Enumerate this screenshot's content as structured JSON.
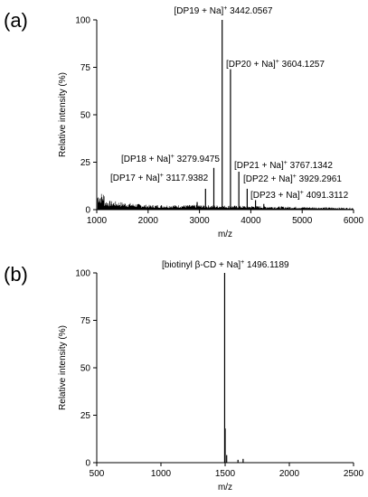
{
  "chart_data": [
    {
      "panel_label": "(a)",
      "type": "bar",
      "xlabel": "m/z",
      "ylabel": "Relative intensity (%)",
      "xlim": [
        1000,
        6000
      ],
      "ylim": [
        0,
        100
      ],
      "xticks": [
        "1000",
        "2000",
        "3000",
        "4000",
        "5000",
        "6000"
      ],
      "yticks": [
        "0",
        "25",
        "50",
        "75",
        "100"
      ],
      "peaks": [
        {
          "x": 2955,
          "y": 4
        },
        {
          "x": 3117.9382,
          "y": 11
        },
        {
          "x": 3279.9475,
          "y": 22
        },
        {
          "x": 3442.0567,
          "y": 100
        },
        {
          "x": 3604.1257,
          "y": 74
        },
        {
          "x": 3767.1342,
          "y": 20
        },
        {
          "x": 3929.2961,
          "y": 11
        },
        {
          "x": 4091.3112,
          "y": 5
        },
        {
          "x": 4253,
          "y": 3
        }
      ],
      "annotations": [
        {
          "peak": "[DP19 + Na]",
          "sup": "+",
          "mz": "3442.0567"
        },
        {
          "peak": "[DP20 + Na]",
          "sup": "+",
          "mz": "3604.1257"
        },
        {
          "peak": "[DP18 + Na]",
          "sup": "+",
          "mz": "3279.9475"
        },
        {
          "peak": "[DP21 + Na]",
          "sup": "+",
          "mz": "3767.1342"
        },
        {
          "peak": "[DP17 + Na]",
          "sup": "+",
          "mz": "3117.9382"
        },
        {
          "peak": "[DP22 + Na]",
          "sup": "+",
          "mz": "3929.2961"
        },
        {
          "peak": "[DP23 + Na]",
          "sup": "+",
          "mz": "4091.3112"
        }
      ],
      "baseline": "noisy, 1000–2000 up to ~8%, decaying to ~1% by 6000"
    },
    {
      "panel_label": "(b)",
      "type": "bar",
      "xlabel": "m/z",
      "ylabel": "Relative intensity (%)",
      "xlim": [
        500,
        2500
      ],
      "ylim": [
        0,
        100
      ],
      "xticks": [
        "500",
        "1000",
        "1500",
        "2000",
        "2500"
      ],
      "yticks": [
        "0",
        "25",
        "50",
        "75",
        "100"
      ],
      "peaks": [
        {
          "x": 1496.1189,
          "y": 100
        },
        {
          "x": 1500,
          "y": 18
        },
        {
          "x": 1512,
          "y": 4
        },
        {
          "x": 1600,
          "y": 1.5
        },
        {
          "x": 1640,
          "y": 2
        }
      ],
      "annotations": [
        {
          "peak": "[biotinyl β-CD + Na]",
          "sup": "+",
          "mz": "1496.1189"
        }
      ]
    }
  ]
}
